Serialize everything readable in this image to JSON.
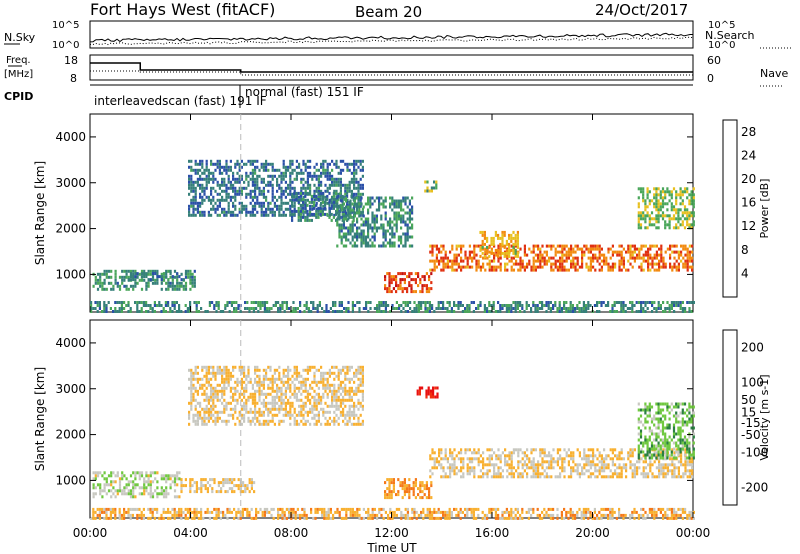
{
  "header": {
    "station": "Fort Hays West (fitACF)",
    "beam": "Beam 20",
    "date": "24/Oct/2017"
  },
  "top_panels": {
    "nsky_label": "N.Sky",
    "nsearch_label": "N.Search",
    "noise_ticks_left": [
      "10^5",
      "10^0"
    ],
    "noise_ticks_right": [
      "10^5",
      "10^0"
    ],
    "freq_label_1": "Freq.",
    "freq_label_2": "[MHz]",
    "freq_ticks": [
      "18",
      "8"
    ],
    "nave_label": "Nave",
    "nave_ticks": [
      "60",
      "0"
    ],
    "cpid_label": "CPID",
    "cpid_entries": [
      "interleavedscan (fast) 191 IF",
      "normal (fast) 151 IF"
    ]
  },
  "x_axis": {
    "label": "Time UT",
    "ticks": [
      "00:00",
      "04:00",
      "08:00",
      "12:00",
      "16:00",
      "20:00",
      "00:00"
    ]
  },
  "chart_data": [
    {
      "type": "heatmap",
      "title": "Power",
      "ylabel": "Slant Range [km]",
      "y_ticks": [
        1000,
        2000,
        3000,
        4000
      ],
      "ylim": [
        180,
        4500
      ],
      "xlim_hours": [
        0,
        24
      ],
      "colorbar_label": "Power [dB]",
      "colorbar_ticks": [
        4,
        8,
        12,
        16,
        20,
        24,
        28
      ],
      "colorbar_range": [
        0,
        30
      ],
      "colors": [
        "#1a2fd8",
        "#2b50a8",
        "#36807a",
        "#4aa65a",
        "#e8c020",
        "#f28a10",
        "#e03010",
        "#c01010"
      ],
      "bands": [
        {
          "t0": 0.1,
          "t1": 4.2,
          "r0": 700,
          "r1": 1100,
          "val": 11
        },
        {
          "t0": 1.5,
          "t1": 3.8,
          "r0": 900,
          "r1": 1050,
          "val": 8
        },
        {
          "t0": 3.9,
          "t1": 10.9,
          "r0": 2300,
          "r1": 3500,
          "val": 8
        },
        {
          "t0": 8.0,
          "t1": 10.5,
          "r0": 2200,
          "r1": 2800,
          "val": 9
        },
        {
          "t0": 9.8,
          "t1": 12.8,
          "r0": 1600,
          "r1": 2700,
          "val": 10
        },
        {
          "t0": 11.7,
          "t1": 13.6,
          "r0": 600,
          "r1": 1050,
          "val": 24
        },
        {
          "t0": 13.3,
          "t1": 13.8,
          "r0": 2850,
          "r1": 3050,
          "val": 14
        },
        {
          "t0": 13.5,
          "t1": 24.0,
          "r0": 1100,
          "r1": 1650,
          "val": 22
        },
        {
          "t0": 15.5,
          "t1": 17.0,
          "r0": 1400,
          "r1": 1950,
          "val": 18
        },
        {
          "t0": 21.8,
          "t1": 24.0,
          "r0": 2000,
          "r1": 2900,
          "val": 15
        },
        {
          "t0": 0.0,
          "t1": 24.0,
          "r0": 200,
          "r1": 420,
          "val": 10
        }
      ]
    },
    {
      "type": "heatmap",
      "title": "Velocity",
      "ylabel": "Slant Range [km]",
      "y_ticks": [
        1000,
        2000,
        3000,
        4000
      ],
      "ylim": [
        180,
        4500
      ],
      "xlim_hours": [
        0,
        24
      ],
      "colorbar_label": "Velocity [m s-1]",
      "colorbar_ticks": [
        200,
        100,
        50,
        15,
        -15,
        -50,
        -100,
        -200
      ],
      "colorbar_range": [
        -250,
        250
      ],
      "colors": [
        "#e81010",
        "#f03010",
        "#f57818",
        "#f8b030",
        "#c8c8c0",
        "#70c840",
        "#2a8040",
        "#2040c0"
      ],
      "bands": [
        {
          "t0": 0.1,
          "t1": 3.6,
          "r0": 650,
          "r1": 1200,
          "val": 50
        },
        {
          "t0": 3.6,
          "t1": 6.5,
          "r0": 750,
          "r1": 1050,
          "val": 0
        },
        {
          "t0": 3.9,
          "t1": 10.9,
          "r0": 2200,
          "r1": 3500,
          "val": 0
        },
        {
          "t0": 11.7,
          "t1": 13.6,
          "r0": 600,
          "r1": 1050,
          "val": -60
        },
        {
          "t0": 13.0,
          "t1": 13.8,
          "r0": 2850,
          "r1": 3050,
          "val": -200
        },
        {
          "t0": 13.5,
          "t1": 24.0,
          "r0": 1100,
          "r1": 1700,
          "val": 0
        },
        {
          "t0": 21.8,
          "t1": 24.0,
          "r0": 1500,
          "r1": 2700,
          "val": 100
        },
        {
          "t0": 0.0,
          "t1": 24.0,
          "r0": 200,
          "r1": 400,
          "val": -30
        }
      ]
    }
  ]
}
